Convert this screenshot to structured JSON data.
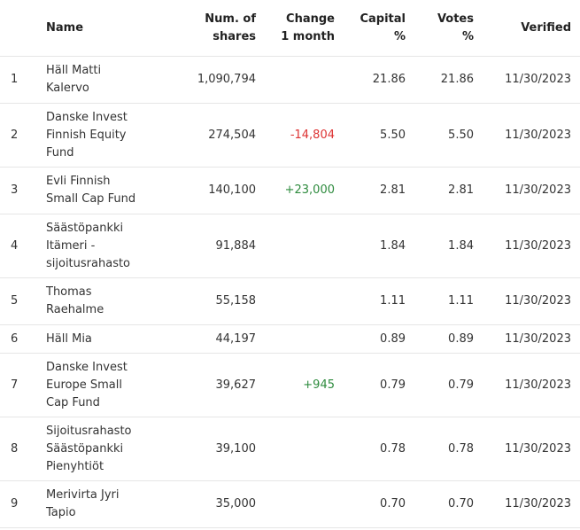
{
  "table": {
    "headers": {
      "rank": "",
      "name": "Name",
      "shares_line1": "Num. of",
      "shares_line2": "shares",
      "change_line1": "Change",
      "change_line2": "1 month",
      "capital_line1": "Capital",
      "capital_line2": "%",
      "votes_line1": "Votes",
      "votes_line2": "%",
      "verified": "Verified"
    },
    "rows": [
      {
        "rank": "1",
        "name_lines": [
          "Häll Matti",
          "Kalervo"
        ],
        "shares": "1,090,794",
        "change": "",
        "change_sign": "",
        "capital": "21.86",
        "votes": "21.86",
        "verified": "11/30/2023"
      },
      {
        "rank": "2",
        "name_lines": [
          "Danske Invest",
          "Finnish Equity",
          "Fund"
        ],
        "shares": "274,504",
        "change": "-14,804",
        "change_sign": "neg",
        "capital": "5.50",
        "votes": "5.50",
        "verified": "11/30/2023"
      },
      {
        "rank": "3",
        "name_lines": [
          "Evli Finnish",
          "Small Cap Fund"
        ],
        "shares": "140,100",
        "change": "+23,000",
        "change_sign": "pos",
        "capital": "2.81",
        "votes": "2.81",
        "verified": "11/30/2023"
      },
      {
        "rank": "4",
        "name_lines": [
          "Säästöpankki",
          "Itämeri -",
          "sijoitusrahasto"
        ],
        "shares": "91,884",
        "change": "",
        "change_sign": "",
        "capital": "1.84",
        "votes": "1.84",
        "verified": "11/30/2023"
      },
      {
        "rank": "5",
        "name_lines": [
          "Thomas",
          "Raehalme"
        ],
        "shares": "55,158",
        "change": "",
        "change_sign": "",
        "capital": "1.11",
        "votes": "1.11",
        "verified": "11/30/2023"
      },
      {
        "rank": "6",
        "name_lines": [
          "Häll Mia"
        ],
        "shares": "44,197",
        "change": "",
        "change_sign": "",
        "capital": "0.89",
        "votes": "0.89",
        "verified": "11/30/2023"
      },
      {
        "rank": "7",
        "name_lines": [
          "Danske Invest",
          "Europe Small",
          "Cap Fund"
        ],
        "shares": "39,627",
        "change": "+945",
        "change_sign": "pos",
        "capital": "0.79",
        "votes": "0.79",
        "verified": "11/30/2023"
      },
      {
        "rank": "8",
        "name_lines": [
          "Sijoitusrahasto",
          "Säästöpankki",
          "Pienyhtiöt"
        ],
        "shares": "39,100",
        "change": "",
        "change_sign": "",
        "capital": "0.78",
        "votes": "0.78",
        "verified": "11/30/2023"
      },
      {
        "rank": "9",
        "name_lines": [
          "Merivirta Jyri",
          "Tapio"
        ],
        "shares": "35,000",
        "change": "",
        "change_sign": "",
        "capital": "0.70",
        "votes": "0.70",
        "verified": "11/30/2023"
      }
    ]
  },
  "colors": {
    "negative": "#dd3333",
    "positive": "#2e8b3e",
    "divider": "#e6e6e6"
  }
}
